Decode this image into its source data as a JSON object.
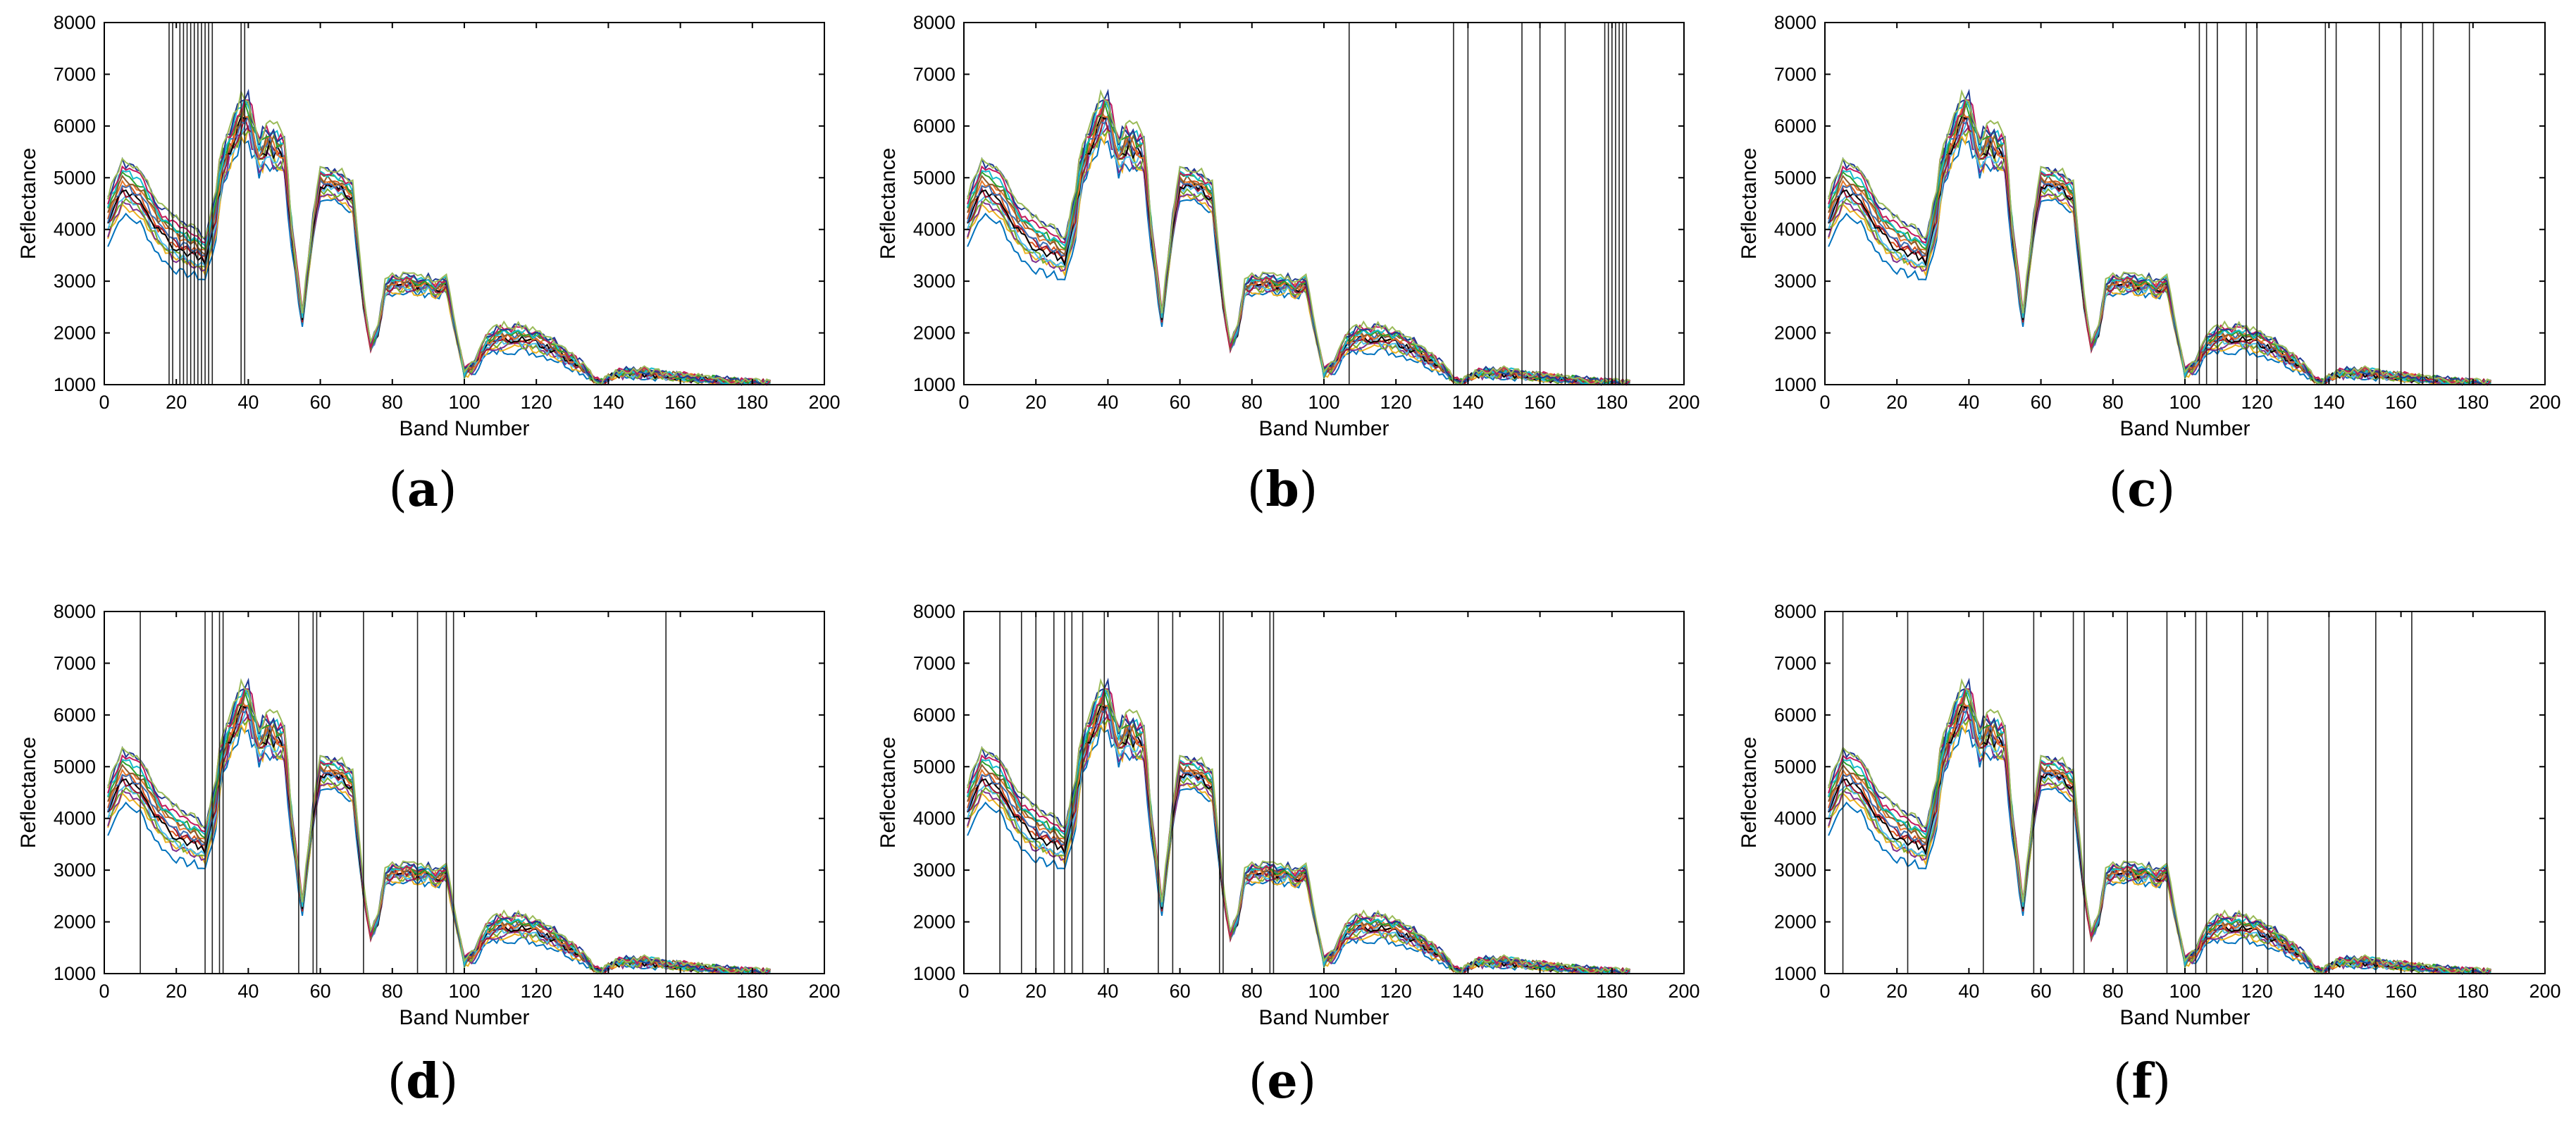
{
  "figure": {
    "panels": [
      {
        "caption": "a",
        "selected_bands": [
          18,
          19,
          21,
          22,
          23,
          24,
          25,
          26,
          27,
          28,
          29,
          30,
          38,
          39
        ]
      },
      {
        "caption": "b",
        "selected_bands": [
          107,
          136,
          140,
          155,
          160,
          167,
          178,
          179,
          180,
          181,
          182,
          183,
          184
        ]
      },
      {
        "caption": "c",
        "selected_bands": [
          104,
          106,
          109,
          117,
          120,
          139,
          142,
          154,
          160,
          166,
          169,
          179
        ]
      },
      {
        "caption": "d",
        "selected_bands": [
          10,
          28,
          30,
          32,
          33,
          54,
          58,
          59,
          72,
          87,
          95,
          97,
          156
        ]
      },
      {
        "caption": "e",
        "selected_bands": [
          10,
          16,
          20,
          25,
          28,
          30,
          33,
          39,
          54,
          58,
          71,
          72,
          85,
          86
        ]
      },
      {
        "caption": "f",
        "selected_bands": [
          5,
          23,
          44,
          58,
          69,
          72,
          84,
          95,
          103,
          106,
          116,
          123,
          140,
          153,
          163
        ]
      }
    ]
  },
  "chart_data": {
    "type": "line",
    "title": "",
    "xlabel": "Band Number",
    "ylabel": "Reflectance",
    "xlim": [
      0,
      200
    ],
    "ylim": [
      1000,
      8000
    ],
    "xticks": [
      0,
      20,
      40,
      60,
      80,
      100,
      120,
      140,
      160,
      180,
      200
    ],
    "yticks": [
      1000,
      2000,
      3000,
      4000,
      5000,
      6000,
      7000,
      8000
    ],
    "series_count": 16,
    "series_colors": [
      "#0072bd",
      "#d95319",
      "#edb120",
      "#7e2f8e",
      "#77ac30",
      "#4dbeee",
      "#a2142f",
      "#000000",
      "#3b6fb6",
      "#e3782b",
      "#8b5a2b",
      "#2ca02c",
      "#17becf",
      "#c2185b",
      "#1f3a93",
      "#9bbb59"
    ],
    "band_reflectance": {
      "bands": [
        1,
        5,
        10,
        15,
        20,
        25,
        28,
        30,
        33,
        36,
        38,
        40,
        43,
        45,
        48,
        50,
        52,
        55,
        58,
        60,
        63,
        66,
        69,
        72,
        74,
        76,
        78,
        80,
        82,
        85,
        88,
        90,
        92,
        95,
        97,
        100,
        103,
        106,
        110,
        115,
        120,
        125,
        130,
        133,
        136,
        138,
        140,
        142,
        145,
        150,
        155,
        160,
        165,
        170,
        175,
        180,
        185
      ],
      "reference_curve": [
        4500,
        5200,
        5000,
        4600,
        4400,
        4200,
        3900,
        4400,
        5600,
        6200,
        6500,
        6600,
        5800,
        6000,
        5900,
        5800,
        4200,
        2400,
        4300,
        5200,
        5200,
        5100,
        4900,
        2700,
        1800,
        2100,
        3000,
        3100,
        3100,
        3100,
        3050,
        3100,
        3000,
        3100,
        2300,
        1300,
        1500,
        2000,
        2200,
        2200,
        2100,
        1900,
        1600,
        1400,
        1150,
        1050,
        1150,
        1250,
        1300,
        1300,
        1250,
        1200,
        1150,
        1120,
        1080,
        1050,
        1030
      ]
    }
  }
}
